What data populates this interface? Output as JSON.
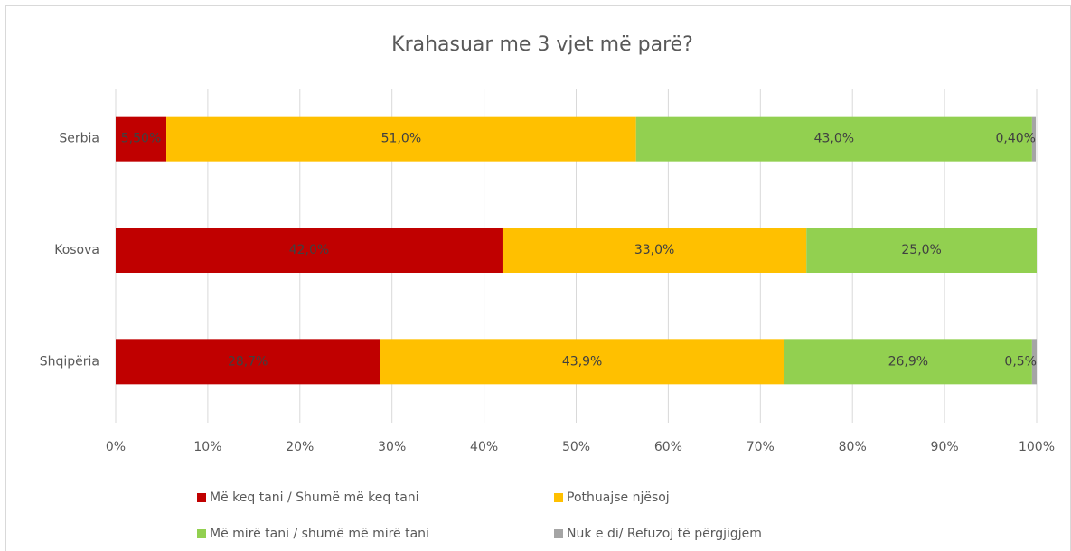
{
  "chart_data": {
    "type": "stacked-barh",
    "title": "Krahasuar me 3 vjet më parë?",
    "categories": [
      "Serbia",
      "Kosova",
      "Shqipëria"
    ],
    "series": [
      {
        "name": "Më keq tani / Shumë më keq tani",
        "color": "#c00000",
        "values": [
          5.5,
          42.0,
          28.7
        ],
        "value_labels": [
          "5,50%",
          "42,0%",
          "28,7%"
        ]
      },
      {
        "name": "Pothuajse njësoj",
        "color": "#ffc000",
        "values": [
          51.0,
          33.0,
          43.9
        ],
        "value_labels": [
          "51,0%",
          "33,0%",
          "43,9%"
        ]
      },
      {
        "name": "Më mirë tani / shumë më mirë tani",
        "color": "#92d050",
        "values": [
          43.0,
          25.0,
          26.9
        ],
        "value_labels": [
          "43,0%",
          "25,0%",
          "26,9%"
        ]
      },
      {
        "name": "Nuk e di/ Refuzoj të përgjigjem",
        "color": "#a5a5a5",
        "values": [
          0.4,
          null,
          0.5
        ],
        "value_labels": [
          "0,40%",
          null,
          "0,5%"
        ]
      }
    ],
    "xlim": [
      0,
      100
    ],
    "xticks": [
      {
        "value": 0,
        "label": "0%"
      },
      {
        "value": 10,
        "label": "10%"
      },
      {
        "value": 20,
        "label": "20%"
      },
      {
        "value": 30,
        "label": "30%"
      },
      {
        "value": 40,
        "label": "40%"
      },
      {
        "value": 50,
        "label": "50%"
      },
      {
        "value": 60,
        "label": "60%"
      },
      {
        "value": 70,
        "label": "70%"
      },
      {
        "value": 80,
        "label": "80%"
      },
      {
        "value": 90,
        "label": "90%"
      },
      {
        "value": 100,
        "label": "100%"
      }
    ],
    "grid": true,
    "legend": "bottom"
  }
}
